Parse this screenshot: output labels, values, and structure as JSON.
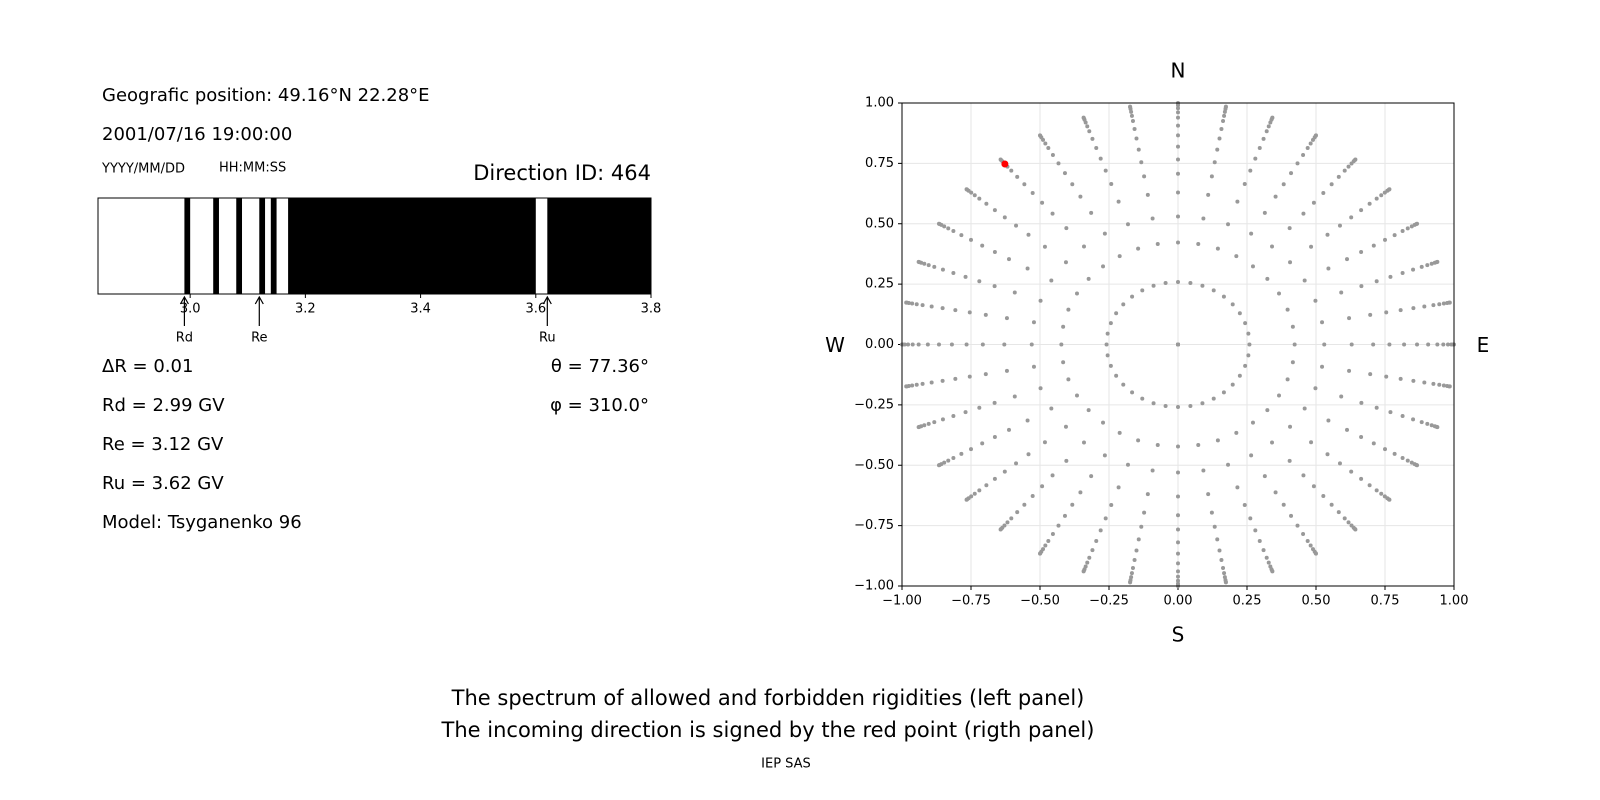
{
  "texts": {
    "position": "Geografic position: 49.16°N 22.28°E",
    "datetime": "2001/07/16 19:00:00",
    "date_format": "YYYY/MM/DD",
    "time_format": "HH:MM:SS",
    "direction": "Direction ID: 464",
    "info": [
      "ΔR = 0.01",
      "Rd = 2.99 GV",
      "Re = 3.12 GV",
      "Ru = 3.62 GV",
      "Model: Tsyganenko 96"
    ],
    "angles": [
      "θ = 77.36°",
      "φ = 310.0°"
    ],
    "caption": [
      "The spectrum of allowed and forbidden rigidities (left panel)",
      "The incoming direction is signed by the red point (rigth panel)"
    ],
    "credit": "IEP SAS"
  },
  "chart_data": [
    {
      "type": "spectrum",
      "xlim": [
        2.84,
        3.8
      ],
      "xticks": [
        {
          "value": 3.0,
          "label": "3.0"
        },
        3.2,
        3.4,
        3.6,
        3.8
      ],
      "bands": [
        [
          2.99,
          3.0
        ],
        [
          3.04,
          3.05
        ],
        [
          3.08,
          3.09
        ],
        [
          3.12,
          3.13
        ],
        [
          3.14,
          3.15
        ],
        [
          3.17,
          3.6
        ],
        [
          3.62,
          3.8
        ]
      ],
      "color": "#000000",
      "markers": [
        {
          "name": "Rd",
          "value": 2.99
        },
        {
          "name": "Re",
          "value": 3.12
        },
        {
          "name": "Ru",
          "value": 3.62
        }
      ]
    },
    {
      "type": "scatter",
      "xlim": [
        -1,
        1
      ],
      "ylim": [
        -1,
        1
      ],
      "xticks": [
        {
          "value": -1,
          "label": "−1.00"
        },
        {
          "value": -0.75,
          "label": "−0.75"
        },
        {
          "value": -0.5,
          "label": "−0.50"
        },
        {
          "value": -0.25,
          "label": "−0.25"
        },
        {
          "value": 0,
          "label": "0.00"
        },
        0.25,
        {
          "value": 0.5,
          "label": "0.50"
        },
        0.75,
        {
          "value": 1,
          "label": "1.00"
        }
      ],
      "yticks": [
        {
          "value": -1,
          "label": "−1.00"
        },
        {
          "value": -0.75,
          "label": "−0.75"
        },
        {
          "value": -0.5,
          "label": "−0.50"
        },
        {
          "value": -0.25,
          "label": "−0.25"
        },
        {
          "value": 0,
          "label": "0.00"
        },
        0.25,
        {
          "value": 0.5,
          "label": "0.50"
        },
        0.75,
        {
          "value": 1,
          "label": "1.00"
        }
      ],
      "grid": true,
      "color": "#999999",
      "zenith": [
        0,
        15,
        25,
        32,
        39,
        45,
        50,
        55,
        60,
        65,
        70,
        74,
        78,
        82,
        86,
        90
      ],
      "azimuth": [
        0,
        10,
        20,
        30,
        40,
        50,
        60,
        70,
        80,
        90,
        100,
        110,
        120,
        130,
        140,
        150,
        160,
        170,
        180,
        190,
        200,
        210,
        220,
        230,
        240,
        250,
        260,
        270,
        280,
        290,
        300,
        310,
        320,
        330,
        340,
        350
      ],
      "highlight": {
        "zenith": 77.36,
        "azimuth": 310.0,
        "color": "#ff0000"
      },
      "directions": {
        "top": "N",
        "bottom": "S",
        "left": "W",
        "right": "E"
      }
    }
  ]
}
